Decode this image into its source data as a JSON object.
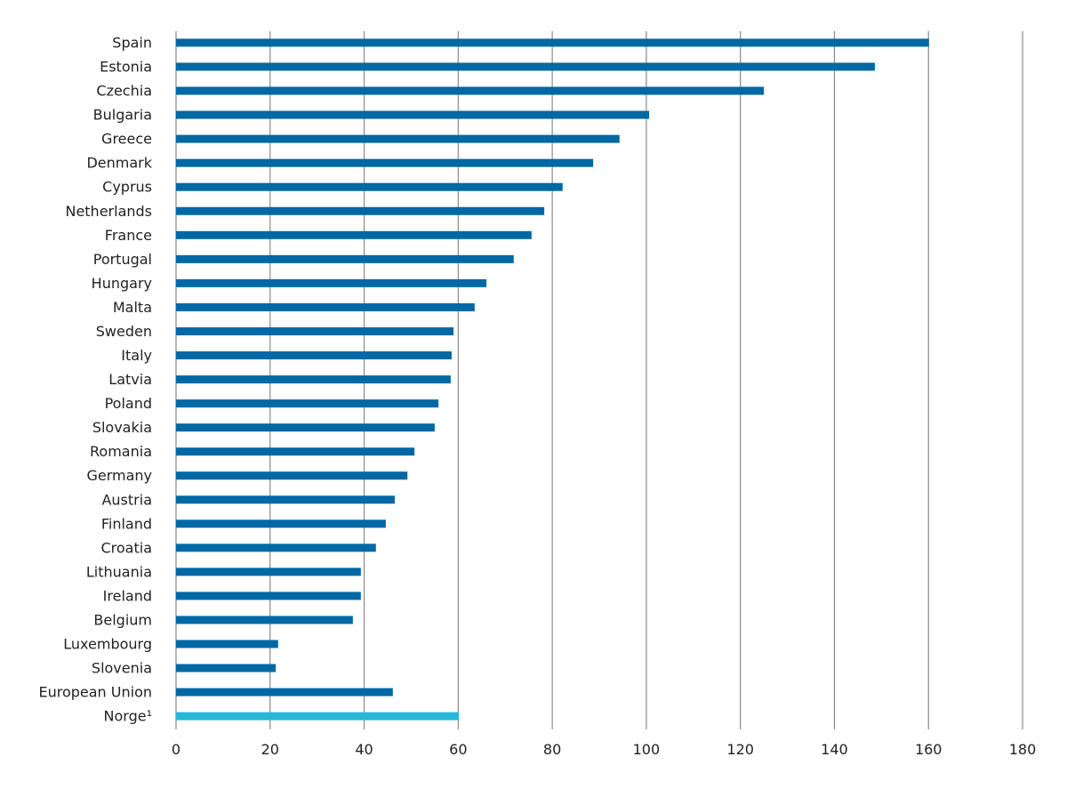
{
  "chart_data": {
    "type": "bar",
    "orientation": "horizontal",
    "title": "",
    "xlabel": "",
    "ylabel": "",
    "xlim": [
      0,
      180
    ],
    "x_ticks": [
      0,
      20,
      40,
      60,
      80,
      100,
      120,
      140,
      160,
      180
    ],
    "grid": "vertical",
    "legend": "none",
    "categories": [
      "Spain",
      "Estonia",
      "Czechia",
      "Bulgaria",
      "Greece",
      "Denmark",
      "Cyprus",
      "Netherlands",
      "France",
      "Portugal",
      "Hungary",
      "Malta",
      "Sweden",
      "Italy",
      "Latvia",
      "Poland",
      "Slovakia",
      "Romania",
      "Germany",
      "Austria",
      "Finland",
      "Croatia",
      "Lithuania",
      "Ireland",
      "Belgium",
      "Luxembourg",
      "Slovenia",
      "European Union",
      "Norge¹"
    ],
    "values": [
      160.1,
      148.6,
      125,
      100.6,
      94.3,
      88.7,
      82.2,
      78.3,
      75.6,
      71.8,
      66,
      63.5,
      59,
      58.6,
      58.4,
      55.8,
      55,
      50.7,
      49.2,
      46.5,
      44.6,
      42.5,
      39.3,
      39.3,
      37.6,
      21.7,
      21.2,
      46.1,
      60.1
    ],
    "colors": {
      "default": "#0068a5",
      "highlight": "#26b8d8",
      "grid": "#8a8a8a"
    },
    "highlight_category": "Norge¹"
  }
}
